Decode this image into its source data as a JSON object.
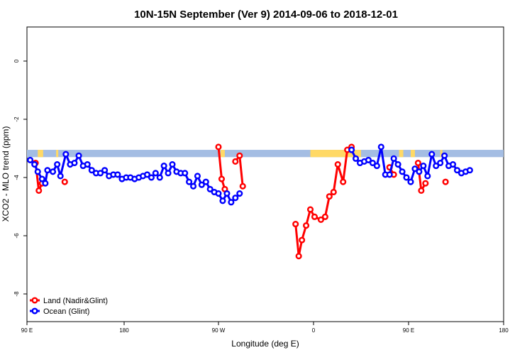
{
  "chart_data": {
    "type": "line",
    "title": "10N-15N September (Ver 9)   2014-09-06 to 2018-12-01",
    "xlabel": "Longitude (deg E)",
    "ylabel": "XCO2 - MLO trend (ppm)",
    "xlim": [
      90,
      450
    ],
    "ylim": [
      -9.2,
      1.1
    ],
    "x_ticks": [
      {
        "value": 90,
        "label": "90 E"
      },
      {
        "value": 180,
        "label": "180"
      },
      {
        "value": 270,
        "label": "90 W"
      },
      {
        "value": 360,
        "label": "0"
      },
      {
        "value": 450,
        "label": "90 E"
      },
      {
        "value": 540,
        "label": "180"
      }
    ],
    "y_ticks": [
      {
        "value": 0,
        "label": "0"
      },
      {
        "value": -2,
        "label": "-2"
      },
      {
        "value": -4,
        "label": "-4"
      },
      {
        "value": -6,
        "label": "-6"
      },
      {
        "value": -8,
        "label": "-8"
      }
    ],
    "legend": {
      "position": "bottom-left"
    },
    "colors": {
      "land": "#ff0000",
      "ocean": "#0000ff",
      "land_band": "#ffd966",
      "ocean_band": "#a4bde3"
    },
    "band_y": [
      -3.05,
      -3.3
    ],
    "land_band_segments": [
      [
        100,
        105
      ],
      [
        117,
        119
      ],
      [
        272,
        276
      ],
      [
        357,
        405
      ],
      [
        441,
        445
      ],
      [
        452,
        456
      ],
      [
        480,
        482
      ]
    ],
    "series": [
      {
        "name": "Land (Nadir&Glint)",
        "segments": [
          [
            [
              98,
              -3.5
            ],
            [
              101,
              -4.45
            ],
            [
              104,
              -4.2
            ]
          ],
          [
            [
              125,
              -4.15
            ]
          ],
          [
            [
              270,
              -2.95
            ],
            [
              273,
              -4.05
            ],
            [
              276,
              -4.4
            ]
          ],
          [
            [
              286,
              -3.45
            ],
            [
              290,
              -3.25
            ],
            [
              293,
              -4.3
            ]
          ],
          [
            [
              343,
              -5.6
            ],
            [
              346,
              -6.7
            ],
            [
              349,
              -6.15
            ],
            [
              353,
              -5.65
            ],
            [
              357,
              -5.1
            ],
            [
              361,
              -5.35
            ],
            [
              367,
              -5.45
            ],
            [
              371,
              -5.35
            ],
            [
              375,
              -4.65
            ],
            [
              379,
              -4.5
            ],
            [
              383,
              -3.55
            ],
            [
              388,
              -4.15
            ],
            [
              392,
              -3.05
            ],
            [
              396,
              -2.95
            ]
          ],
          [
            [
              432,
              -3.65
            ],
            [
              436,
              -3.9
            ]
          ],
          [
            [
              459,
              -3.5
            ],
            [
              462,
              -4.45
            ],
            [
              466,
              -4.2
            ]
          ],
          [
            [
              485,
              -4.15
            ]
          ]
        ]
      },
      {
        "name": "Ocean (Glint)",
        "segments": [
          [
            [
              93,
              -3.4
            ],
            [
              97,
              -3.55
            ],
            [
              100,
              -3.8
            ],
            [
              104,
              -4.05
            ],
            [
              107,
              -4.2
            ],
            [
              109,
              -3.75
            ],
            [
              114,
              -3.8
            ],
            [
              118,
              -3.55
            ],
            [
              121,
              -3.95
            ],
            [
              126,
              -3.2
            ],
            [
              130,
              -3.55
            ],
            [
              134,
              -3.5
            ],
            [
              138,
              -3.25
            ],
            [
              142,
              -3.6
            ],
            [
              146,
              -3.55
            ],
            [
              150,
              -3.75
            ],
            [
              154,
              -3.85
            ],
            [
              158,
              -3.85
            ],
            [
              162,
              -3.75
            ],
            [
              166,
              -3.95
            ],
            [
              170,
              -3.9
            ],
            [
              174,
              -3.9
            ],
            [
              178,
              -4.05
            ],
            [
              182,
              -4.0
            ],
            [
              186,
              -4.0
            ],
            [
              190,
              -4.05
            ],
            [
              194,
              -4.0
            ],
            [
              198,
              -3.95
            ],
            [
              202,
              -3.9
            ],
            [
              206,
              -4.0
            ],
            [
              210,
              -3.85
            ],
            [
              214,
              -4.0
            ],
            [
              218,
              -3.6
            ],
            [
              222,
              -3.85
            ],
            [
              226,
              -3.55
            ],
            [
              230,
              -3.8
            ],
            [
              234,
              -3.85
            ],
            [
              238,
              -3.85
            ],
            [
              242,
              -4.15
            ],
            [
              246,
              -4.3
            ],
            [
              250,
              -3.95
            ],
            [
              254,
              -4.25
            ],
            [
              258,
              -4.15
            ],
            [
              262,
              -4.4
            ],
            [
              266,
              -4.5
            ],
            [
              270,
              -4.55
            ],
            [
              274,
              -4.8
            ],
            [
              278,
              -4.55
            ],
            [
              282,
              -4.85
            ],
            [
              286,
              -4.7
            ],
            [
              290,
              -4.55
            ]
          ]
        ],
        "x_offset_segment": [
          [
            [
              396,
              -3.05
            ],
            [
              400,
              -3.35
            ],
            [
              404,
              -3.5
            ],
            [
              408,
              -3.45
            ],
            [
              412,
              -3.4
            ],
            [
              416,
              -3.5
            ],
            [
              420,
              -3.6
            ],
            [
              424,
              -2.95
            ],
            [
              428,
              -3.9
            ],
            [
              432,
              -3.9
            ],
            [
              436,
              -3.35
            ],
            [
              440,
              -3.55
            ],
            [
              444,
              -3.8
            ],
            [
              448,
              -4.0
            ],
            [
              452,
              -4.15
            ],
            [
              456,
              -3.7
            ],
            [
              460,
              -3.8
            ],
            [
              464,
              -3.6
            ],
            [
              468,
              -3.95
            ],
            [
              472,
              -3.2
            ],
            [
              476,
              -3.6
            ],
            [
              480,
              -3.5
            ],
            [
              484,
              -3.25
            ],
            [
              488,
              -3.6
            ],
            [
              492,
              -3.55
            ],
            [
              496,
              -3.75
            ],
            [
              500,
              -3.85
            ],
            [
              504,
              -3.8
            ],
            [
              508,
              -3.75
            ]
          ]
        ]
      }
    ]
  }
}
